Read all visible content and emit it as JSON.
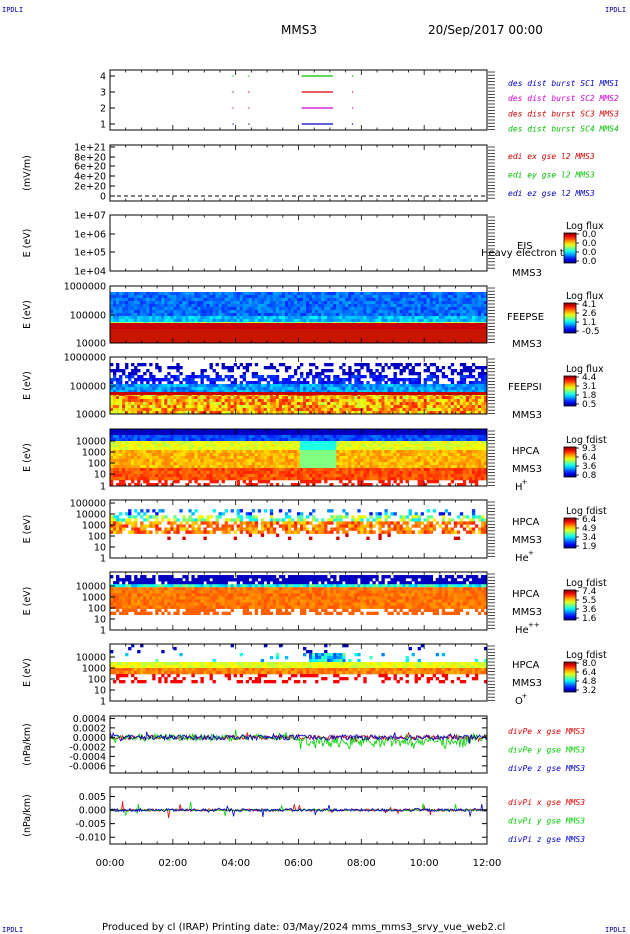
{
  "header": {
    "left_corner": "IPDLI",
    "right_corner": "IPDLI",
    "mission": "MMS3",
    "datetime": "20/Sep/2017 00:00"
  },
  "footer": {
    "credit": "Produced by cl (IRAP)   Printing date: 03/May/2024   mms_mms3_srvy_vue_web2.cl",
    "left_corner": "IPDLI",
    "right_corner": "IPDLI"
  },
  "colors": {
    "sc1": "#0000c0",
    "sc2": "#d000d0",
    "sc3": "#d00000",
    "sc4": "#00c000",
    "x": "#e00000",
    "y": "#00d000",
    "z": "#0000d0"
  },
  "chart_data": [
    {
      "type": "line",
      "id": "burst",
      "ylim": [
        0.5,
        4.5
      ],
      "yticks": [
        "1",
        "2",
        "3",
        "4"
      ],
      "legend": [
        {
          "label": "des dist burst SC1 MMS1",
          "color": "#0000c0"
        },
        {
          "label": "des dist burst SC2 MMS2",
          "color": "#d000d0"
        },
        {
          "label": "des dist burst SC3 MMS3",
          "color": "#d00000"
        },
        {
          "label": "des dist burst SC4 MMS4",
          "color": "#00c000"
        }
      ],
      "intervals_hours": [
        {
          "sc": 4,
          "start": 6.1,
          "end": 7.1
        },
        {
          "sc": 3,
          "start": 6.1,
          "end": 7.1
        },
        {
          "sc": 2,
          "start": 6.1,
          "end": 7.1
        },
        {
          "sc": 1,
          "start": 6.1,
          "end": 7.1
        }
      ],
      "dots_hours": [
        3.9,
        4.4,
        7.7
      ]
    },
    {
      "type": "line",
      "id": "edi",
      "ylabel": "(mV/m)",
      "yticks": [
        "0",
        "2e+20",
        "4e+20",
        "6e+20",
        "8e+20",
        "1e+21"
      ],
      "ylim": [
        0,
        1e+21
      ],
      "legend": [
        {
          "label": "edi ex gse l2 MMS3",
          "color": "#d00000"
        },
        {
          "label": "edi ey gse l2 MMS3",
          "color": "#00c000"
        },
        {
          "label": "edi ez gse l2 MMS3",
          "color": "#0000c0"
        }
      ]
    },
    {
      "type": "heatmap",
      "id": "eis",
      "ylabel": "E (eV)",
      "yticks": [
        "1e+04",
        "1e+05",
        "1e+06",
        "1e+07"
      ],
      "instrument": "EIS",
      "spacecraft": "MMS3",
      "overlay": "Heavy electron to",
      "cbar_title": "Log flux",
      "cbar_ticks": [
        "0.0",
        "0.0",
        "0.0",
        "0.0"
      ]
    },
    {
      "type": "heatmap",
      "id": "feepse",
      "ylabel": "E (eV)",
      "yticks": [
        "10000",
        "100000",
        "1000000"
      ],
      "instrument": "FEEPSE",
      "spacecraft": "MMS3",
      "cbar_title": "Log flux",
      "cbar_ticks": [
        "4.1",
        "2.6",
        "1.1",
        "-0.5"
      ]
    },
    {
      "type": "heatmap",
      "id": "feepsi",
      "ylabel": "E (eV)",
      "yticks": [
        "10000",
        "100000",
        "1000000"
      ],
      "instrument": "FEEPSI",
      "spacecraft": "MMS3",
      "cbar_title": "Log flux",
      "cbar_ticks": [
        "4.4",
        "3.1",
        "1.8",
        "0.5"
      ]
    },
    {
      "type": "heatmap",
      "id": "hpca-h",
      "ylabel": "E (eV)",
      "yticks": [
        "1",
        "10",
        "100",
        "1000",
        "10000"
      ],
      "instrument": "HPCA",
      "spacecraft": "MMS3",
      "species": "H",
      "species_sup": "+",
      "cbar_title": "Log fdist",
      "cbar_ticks": [
        "9.3",
        "6.4",
        "3.6",
        "0.8"
      ]
    },
    {
      "type": "heatmap",
      "id": "hpca-he",
      "ylabel": "E (eV)",
      "yticks": [
        "1",
        "10",
        "100",
        "1000",
        "10000",
        "100000"
      ],
      "instrument": "HPCA",
      "spacecraft": "MMS3",
      "species": "He",
      "species_sup": "+",
      "cbar_title": "Log fdist",
      "cbar_ticks": [
        "6.4",
        "4.9",
        "3.4",
        "1.9"
      ]
    },
    {
      "type": "heatmap",
      "id": "hpca-hepp",
      "ylabel": "E (eV)",
      "yticks": [
        "1",
        "10",
        "100",
        "1000",
        "10000"
      ],
      "instrument": "HPCA",
      "spacecraft": "MMS3",
      "species": "He",
      "species_sup": "++",
      "cbar_title": "Log fdist",
      "cbar_ticks": [
        "7.4",
        "5.5",
        "3.6",
        "1.6"
      ]
    },
    {
      "type": "heatmap",
      "id": "hpca-o",
      "ylabel": "E (eV)",
      "yticks": [
        "1",
        "10",
        "100",
        "1000",
        "10000"
      ],
      "instrument": "HPCA",
      "spacecraft": "MMS3",
      "species": "O",
      "species_sup": "+",
      "cbar_title": "Log fdist",
      "cbar_ticks": [
        "8.0",
        "6.4",
        "4.8",
        "3.2"
      ]
    },
    {
      "type": "line",
      "id": "divpe",
      "ylabel": "(nPa/km)",
      "ylim": [
        -0.00075,
        0.00045
      ],
      "yticks": [
        "-0.0006",
        "-0.0004",
        "-0.0002",
        "0.0000",
        "0.0002",
        "0.0004"
      ],
      "ytick_values": [
        -0.0006,
        -0.0004,
        -0.0002,
        0.0,
        0.0002,
        0.0004
      ],
      "legend": [
        {
          "label": "divPe x gse MMS3",
          "color": "#e00000"
        },
        {
          "label": "divPe y gse MMS3",
          "color": "#00d000"
        },
        {
          "label": "divPe z gse MMS3",
          "color": "#0000d0"
        }
      ]
    },
    {
      "type": "line",
      "id": "divpi",
      "ylabel": "(nPa/km)",
      "ylim": [
        -0.0125,
        0.0085
      ],
      "yticks": [
        "-0.010",
        "-0.005",
        "0.000",
        "0.005"
      ],
      "ytick_values": [
        -0.01,
        -0.005,
        0.0,
        0.005
      ],
      "legend": [
        {
          "label": "divPi x gse MMS3",
          "color": "#e00000"
        },
        {
          "label": "divPi y gse MMS3",
          "color": "#00d000"
        },
        {
          "label": "divPi z gse MMS3",
          "color": "#0000d0"
        }
      ]
    }
  ],
  "xaxis": {
    "ticks": [
      "00:00",
      "02:00",
      "04:00",
      "06:00",
      "08:00",
      "10:00",
      "12:00"
    ],
    "xlim_hours": [
      0,
      12
    ]
  }
}
